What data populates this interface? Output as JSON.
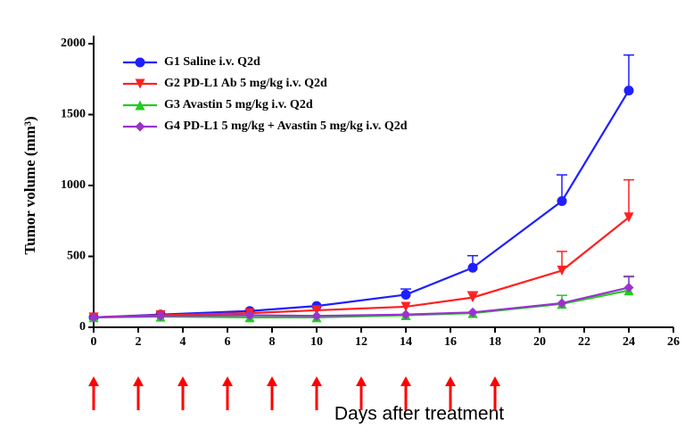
{
  "chart_data": {
    "type": "line",
    "xlabel": "Days after treatment",
    "ylabel": "Tumor volume (mm³)",
    "x": [
      0,
      3,
      7,
      10,
      14,
      17,
      21,
      24
    ],
    "series": [
      {
        "name": "G1 Saline i.v. Q2d",
        "color": "#1f1fff",
        "marker": "circle",
        "values": [
          70,
          90,
          115,
          150,
          230,
          420,
          890,
          1670
        ],
        "errors": [
          null,
          null,
          null,
          null,
          40,
          85,
          185,
          250
        ]
      },
      {
        "name": "G2 PD-L1 Ab 5 mg/kg i.v. Q2d",
        "color": "#ff2020",
        "marker": "triangle-down",
        "values": [
          70,
          85,
          100,
          120,
          145,
          210,
          400,
          775
        ],
        "errors": [
          null,
          null,
          null,
          null,
          null,
          40,
          135,
          265
        ]
      },
      {
        "name": "G3 Avastin 5 mg/kg i.v. Q2d",
        "color": "#22cc22",
        "marker": "triangle-up",
        "values": [
          70,
          75,
          70,
          70,
          85,
          100,
          165,
          260
        ],
        "errors": [
          null,
          null,
          null,
          null,
          null,
          null,
          60,
          95
        ]
      },
      {
        "name": "G4 PD-L1 5 mg/kg + Avastin 5 mg/kg i.v. Q2d",
        "color": "#9933cc",
        "marker": "diamond",
        "values": [
          70,
          80,
          85,
          80,
          90,
          105,
          170,
          280
        ],
        "errors": [
          null,
          null,
          null,
          null,
          null,
          null,
          null,
          80
        ]
      }
    ],
    "dosing_days": [
      0,
      2,
      4,
      6,
      8,
      10,
      12,
      14,
      16,
      18
    ],
    "dosing_color": "#ff0000",
    "xlim": [
      0,
      26
    ],
    "xticks": [
      0,
      2,
      4,
      6,
      8,
      10,
      12,
      14,
      16,
      18,
      20,
      22,
      24,
      26
    ],
    "ylim": [
      0,
      2000
    ],
    "yticks": [
      0,
      500,
      1000,
      1500,
      2000
    ],
    "grid": false
  }
}
